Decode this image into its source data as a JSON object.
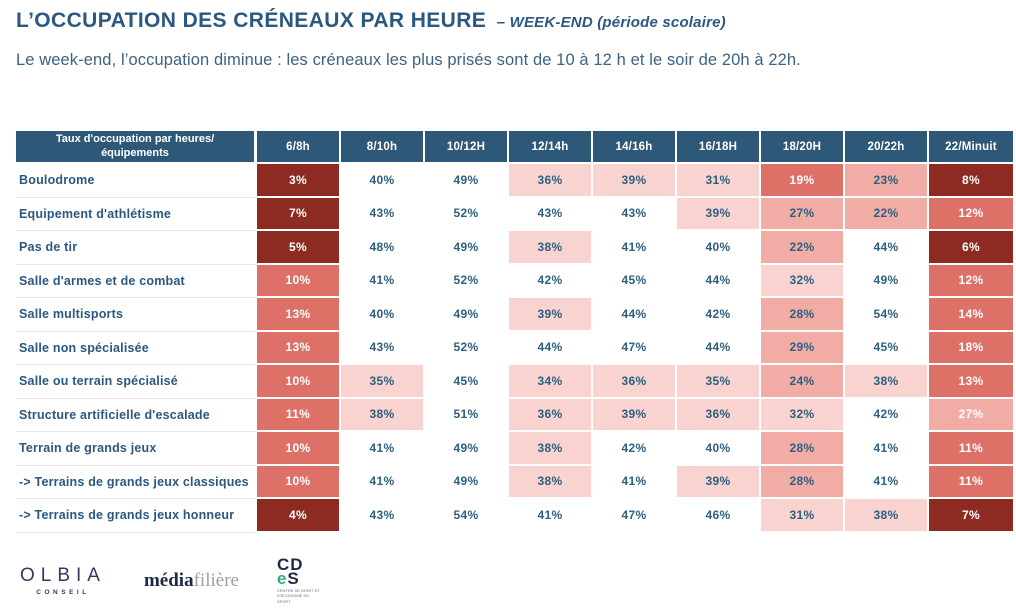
{
  "header": {
    "title": "L’OCCUPATION DES CRÉNEAUX PAR HEURE",
    "title_suffix": "– WEEK-END (période scolaire)",
    "subtitle": "Le week-end, l’occupation diminue : les créneaux les plus prisés sont de 10 à 12 h et le soir de 20h à 22h."
  },
  "colors": {
    "header_bg": "#2E5878",
    "title_text": "#2B5880",
    "subtitle_text": "#3C6284",
    "label_text": "#2B5880",
    "row_divider": "#E7E7E7"
  },
  "chart_data": {
    "type": "heatmap",
    "title": "L’OCCUPATION DES CRÉNEAUX PAR HEURE – WEEK-END (période scolaire)",
    "unit": "%",
    "corner_header_lines": [
      "Taux d'occupation par heures/",
      "équipements"
    ],
    "columns": [
      "6/8h",
      "8/10h",
      "10/12H",
      "12/14h",
      "14/16h",
      "16/18H",
      "18/20H",
      "20/22h",
      "22/Minuit"
    ],
    "rows": [
      {
        "label": "Boulodrome",
        "values": [
          3,
          40,
          49,
          36,
          39,
          31,
          19,
          23,
          8
        ]
      },
      {
        "label": "Equipement d'athlétisme",
        "values": [
          7,
          43,
          52,
          43,
          43,
          39,
          27,
          22,
          12
        ]
      },
      {
        "label": "Pas de tir",
        "values": [
          5,
          48,
          49,
          38,
          41,
          40,
          22,
          44,
          6
        ]
      },
      {
        "label": "Salle d'armes et de combat",
        "values": [
          10,
          41,
          52,
          42,
          45,
          44,
          32,
          49,
          12
        ]
      },
      {
        "label": "Salle multisports",
        "values": [
          13,
          40,
          49,
          39,
          44,
          42,
          28,
          54,
          14
        ]
      },
      {
        "label": "Salle non spécialisée",
        "values": [
          13,
          43,
          52,
          44,
          47,
          44,
          29,
          45,
          18
        ]
      },
      {
        "label": "Salle ou terrain spécialisé",
        "values": [
          10,
          35,
          45,
          34,
          36,
          35,
          24,
          38,
          13
        ]
      },
      {
        "label": "Structure artificielle d'escalade",
        "values": [
          11,
          38,
          51,
          36,
          39,
          36,
          32,
          42,
          27
        ]
      },
      {
        "label": "Terrain de grands jeux",
        "values": [
          10,
          41,
          49,
          38,
          42,
          40,
          28,
          41,
          11
        ]
      },
      {
        "label": "-> Terrains de grands jeux classiques",
        "values": [
          10,
          41,
          49,
          38,
          41,
          39,
          28,
          41,
          11
        ]
      },
      {
        "label": "-> Terrains de grands jeux honneur",
        "values": [
          4,
          43,
          54,
          41,
          47,
          46,
          31,
          38,
          7
        ]
      }
    ],
    "color_scale": {
      "buckets": [
        {
          "max": 8,
          "bg": "#8D2B22",
          "text": "#FFFFFF"
        },
        {
          "max": 19,
          "bg": "#DD7168",
          "text": "#FFFFFF"
        },
        {
          "max": 29,
          "bg": "#F1ACA5",
          "text": "#2D5F80"
        },
        {
          "max": 39,
          "bg": "#F9D3CF",
          "text": "#2D5F80"
        },
        {
          "max": 100,
          "bg": "#FFFFFF",
          "text": "#2D5F80"
        }
      ],
      "forced_white_text_columns": [
        0,
        8
      ]
    }
  },
  "footer": {
    "olbia": {
      "name": "OLBIA",
      "sub": "CONSEIL"
    },
    "mediafiliere": {
      "bold": "média",
      "light": "filière"
    },
    "cdes": {
      "top": "CD",
      "bottom_teal": "e",
      "bottom_rest": "S",
      "caption": "CENTRE DE DROIT ET D'ÉCONOMIE DU SPORT"
    }
  }
}
